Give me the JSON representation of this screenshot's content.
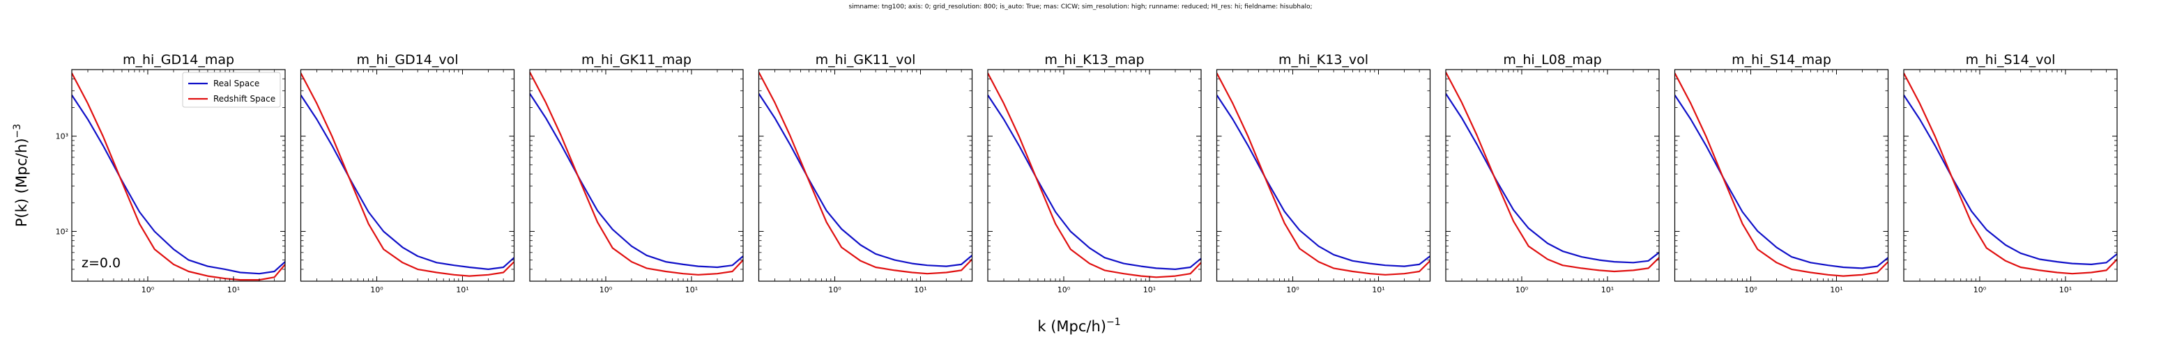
{
  "figure": {
    "suptitle": "simname: tng100; axis: 0; grid_resolution: 800; is_auto: True; mas: CICW; sim_resolution: high; runname: reduced; HI_res: hi; fieldname: hisubhalo;",
    "xlabel_main": "k (Mpc/h)",
    "xlabel_exp": "−1",
    "ylabel_main": "P(k) (Mpc/h)",
    "ylabel_exp": "−3",
    "annotation": "z=0.0",
    "legend": [
      "Real Space",
      "Redshift Space"
    ]
  },
  "chart_data": {
    "type": "line",
    "xscale": "log",
    "yscale": "log",
    "xlim": [
      0.13,
      40
    ],
    "ylim": [
      30,
      5000
    ],
    "x_ticks": [
      1,
      10
    ],
    "x_tick_labels": [
      "10⁰",
      "10¹"
    ],
    "y_ticks": [
      100,
      1000
    ],
    "y_tick_labels": [
      "10²",
      "10³"
    ],
    "legend_position": "upper right (first panel)",
    "colors": {
      "Real Space": "#1010c8",
      "Redshift Space": "#e01010"
    },
    "panels": [
      {
        "title": "m_hi_GD14_map",
        "series": [
          {
            "name": "Real Space",
            "x": [
              0.13,
              0.2,
              0.3,
              0.5,
              0.8,
              1.2,
              2,
              3,
              5,
              8,
              12,
              20,
              30,
              40
            ],
            "y": [
              2700,
              1500,
              800,
              340,
              160,
              100,
              65,
              50,
              43,
              40,
              37,
              36,
              38,
              48
            ]
          },
          {
            "name": "Redshift Space",
            "x": [
              0.13,
              0.2,
              0.3,
              0.5,
              0.8,
              1.2,
              2,
              3,
              5,
              8,
              12,
              20,
              30,
              40
            ],
            "y": [
              4600,
              2200,
              1000,
              330,
              120,
              65,
              45,
              38,
              34,
              32,
              31,
              31,
              33,
              45
            ]
          }
        ]
      },
      {
        "title": "m_hi_GD14_vol",
        "series": [
          {
            "name": "Real Space",
            "x": [
              0.13,
              0.2,
              0.3,
              0.5,
              0.8,
              1.2,
              2,
              3,
              5,
              8,
              12,
              20,
              30,
              40
            ],
            "y": [
              2700,
              1500,
              800,
              340,
              160,
              100,
              68,
              55,
              47,
              44,
              42,
              40,
              42,
              53
            ]
          },
          {
            "name": "Redshift Space",
            "x": [
              0.13,
              0.2,
              0.3,
              0.5,
              0.8,
              1.2,
              2,
              3,
              5,
              8,
              12,
              20,
              30,
              40
            ],
            "y": [
              4600,
              2200,
              1000,
              330,
              120,
              65,
              47,
              40,
              37,
              35,
              34,
              35,
              37,
              48
            ]
          }
        ]
      },
      {
        "title": "m_hi_GK11_map",
        "series": [
          {
            "name": "Real Space",
            "x": [
              0.13,
              0.2,
              0.3,
              0.5,
              0.8,
              1.2,
              2,
              3,
              5,
              8,
              12,
              20,
              30,
              40
            ],
            "y": [
              2800,
              1550,
              820,
              350,
              165,
              105,
              70,
              56,
              48,
              45,
              43,
              42,
              44,
              55
            ]
          },
          {
            "name": "Redshift Space",
            "x": [
              0.13,
              0.2,
              0.3,
              0.5,
              0.8,
              1.2,
              2,
              3,
              5,
              8,
              12,
              20,
              30,
              40
            ],
            "y": [
              4700,
              2250,
              1020,
              340,
              125,
              67,
              48,
              41,
              38,
              36,
              35,
              36,
              38,
              50
            ]
          }
        ]
      },
      {
        "title": "m_hi_GK11_vol",
        "series": [
          {
            "name": "Real Space",
            "x": [
              0.13,
              0.2,
              0.3,
              0.5,
              0.8,
              1.2,
              2,
              3,
              5,
              8,
              12,
              20,
              30,
              40
            ],
            "y": [
              2800,
              1550,
              820,
              350,
              165,
              106,
              72,
              58,
              50,
              46,
              44,
              43,
              45,
              56
            ]
          },
          {
            "name": "Redshift Space",
            "x": [
              0.13,
              0.2,
              0.3,
              0.5,
              0.8,
              1.2,
              2,
              3,
              5,
              8,
              12,
              20,
              30,
              40
            ],
            "y": [
              4700,
              2250,
              1020,
              340,
              125,
              68,
              49,
              42,
              39,
              37,
              36,
              37,
              39,
              51
            ]
          }
        ]
      },
      {
        "title": "m_hi_K13_map",
        "series": [
          {
            "name": "Real Space",
            "x": [
              0.13,
              0.2,
              0.3,
              0.5,
              0.8,
              1.2,
              2,
              3,
              5,
              8,
              12,
              20,
              30,
              40
            ],
            "y": [
              2700,
              1500,
              800,
              340,
              160,
              100,
              67,
              53,
              46,
              43,
              41,
              40,
              42,
              52
            ]
          },
          {
            "name": "Redshift Space",
            "x": [
              0.13,
              0.2,
              0.3,
              0.5,
              0.8,
              1.2,
              2,
              3,
              5,
              8,
              12,
              20,
              30,
              40
            ],
            "y": [
              4600,
              2200,
              1000,
              330,
              120,
              65,
              46,
              39,
              36,
              34,
              33,
              34,
              36,
              47
            ]
          }
        ]
      },
      {
        "title": "m_hi_K13_vol",
        "series": [
          {
            "name": "Real Space",
            "x": [
              0.13,
              0.2,
              0.3,
              0.5,
              0.8,
              1.2,
              2,
              3,
              5,
              8,
              12,
              20,
              30,
              40
            ],
            "y": [
              2700,
              1500,
              800,
              340,
              162,
              103,
              70,
              57,
              49,
              46,
              44,
              43,
              45,
              55
            ]
          },
          {
            "name": "Redshift Space",
            "x": [
              0.13,
              0.2,
              0.3,
              0.5,
              0.8,
              1.2,
              2,
              3,
              5,
              8,
              12,
              20,
              30,
              40
            ],
            "y": [
              4600,
              2200,
              1000,
              330,
              122,
              66,
              48,
              41,
              38,
              36,
              35,
              36,
              38,
              49
            ]
          }
        ]
      },
      {
        "title": "m_hi_L08_map",
        "series": [
          {
            "name": "Real Space",
            "x": [
              0.13,
              0.2,
              0.3,
              0.5,
              0.8,
              1.2,
              2,
              3,
              5,
              8,
              12,
              20,
              30,
              40
            ],
            "y": [
              2800,
              1550,
              820,
              350,
              168,
              108,
              75,
              62,
              54,
              50,
              48,
              47,
              49,
              60
            ]
          },
          {
            "name": "Redshift Space",
            "x": [
              0.13,
              0.2,
              0.3,
              0.5,
              0.8,
              1.2,
              2,
              3,
              5,
              8,
              12,
              20,
              30,
              40
            ],
            "y": [
              4700,
              2250,
              1020,
              340,
              128,
              70,
              51,
              44,
              41,
              39,
              38,
              39,
              41,
              53
            ]
          }
        ]
      },
      {
        "title": "m_hi_S14_map",
        "series": [
          {
            "name": "Real Space",
            "x": [
              0.13,
              0.2,
              0.3,
              0.5,
              0.8,
              1.2,
              2,
              3,
              5,
              8,
              12,
              20,
              30,
              40
            ],
            "y": [
              2700,
              1500,
              800,
              340,
              160,
              101,
              68,
              54,
              47,
              44,
              42,
              41,
              43,
              53
            ]
          },
          {
            "name": "Redshift Space",
            "x": [
              0.13,
              0.2,
              0.3,
              0.5,
              0.8,
              1.2,
              2,
              3,
              5,
              8,
              12,
              20,
              30,
              40
            ],
            "y": [
              4600,
              2200,
              1000,
              330,
              120,
              65,
              47,
              40,
              37,
              35,
              34,
              35,
              37,
              48
            ]
          }
        ]
      },
      {
        "title": "m_hi_S14_vol",
        "series": [
          {
            "name": "Real Space",
            "x": [
              0.13,
              0.2,
              0.3,
              0.5,
              0.8,
              1.2,
              2,
              3,
              5,
              8,
              12,
              20,
              30,
              40
            ],
            "y": [
              2700,
              1500,
              800,
              340,
              163,
              104,
              72,
              59,
              51,
              48,
              46,
              45,
              47,
              58
            ]
          },
          {
            "name": "Redshift Space",
            "x": [
              0.13,
              0.2,
              0.3,
              0.5,
              0.8,
              1.2,
              2,
              3,
              5,
              8,
              12,
              20,
              30,
              40
            ],
            "y": [
              4600,
              2200,
              1000,
              330,
              123,
              67,
              49,
              42,
              39,
              37,
              36,
              37,
              39,
              51
            ]
          }
        ]
      }
    ]
  }
}
